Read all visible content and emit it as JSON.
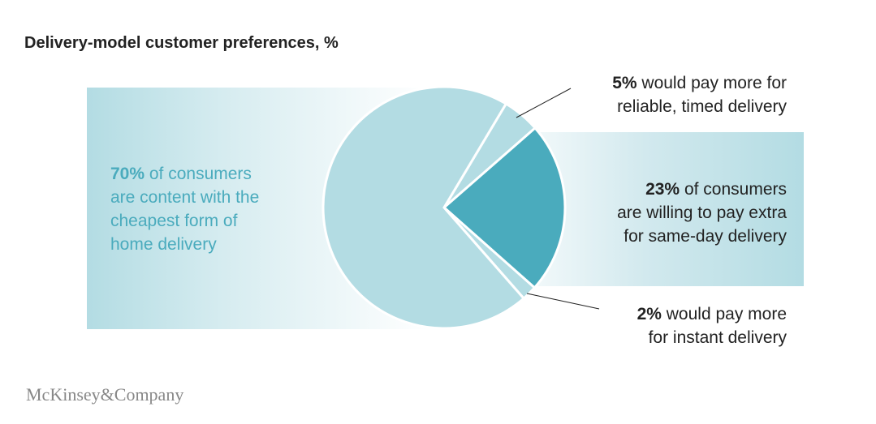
{
  "title": "Delivery-model customer preferences, %",
  "colors": {
    "light": "#b3dce3",
    "dark": "#4aabbd",
    "text_accent": "#4aabbd"
  },
  "chart_data": {
    "type": "pie",
    "title": "Delivery-model customer preferences, %",
    "slices": [
      {
        "value": 5,
        "color": "#b3dce3",
        "label_bold": "5%",
        "label_rest": " would pay more for",
        "label_line2": "reliable, timed delivery"
      },
      {
        "value": 23,
        "color": "#4aabbd",
        "label_bold": "23%",
        "label_rest": " of consumers",
        "label_line2": "are willing to pay extra",
        "label_line3": "for same-day delivery"
      },
      {
        "value": 2,
        "color": "#b3dce3",
        "label_bold": "2%",
        "label_rest": " would pay more",
        "label_line2": "for instant delivery"
      },
      {
        "value": 70,
        "color": "#b3dce3",
        "label_bold": "70%",
        "label_rest": " of consumers",
        "label_line2": "are content with the",
        "label_line3": "cheapest form of",
        "label_line4": "home delivery"
      }
    ]
  },
  "logo": "McKinsey&Company"
}
